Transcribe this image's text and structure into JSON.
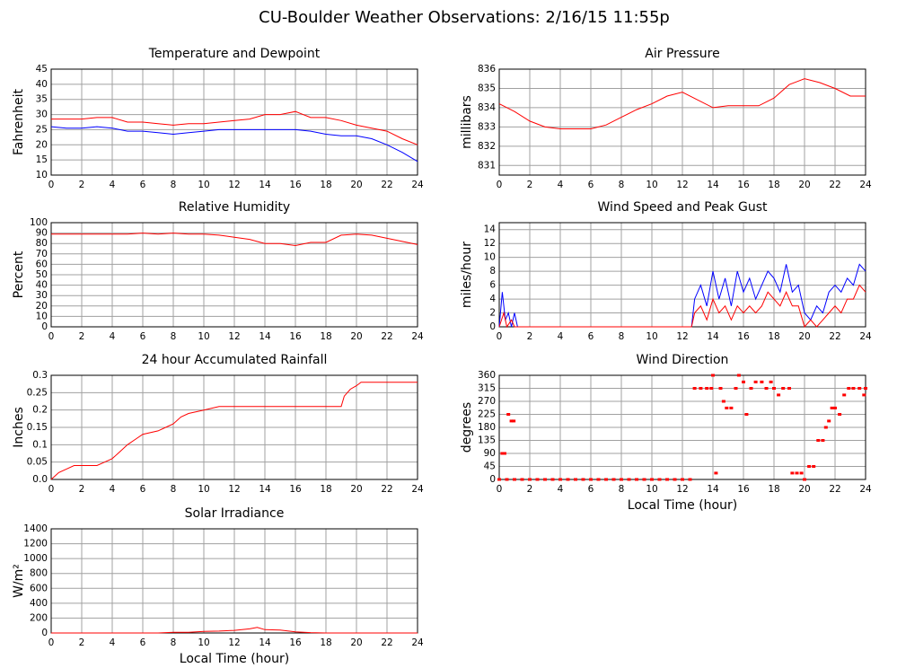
{
  "title": "CU-Boulder Weather Observations: 2/16/15 11:55p",
  "chart_data": [
    {
      "type": "line",
      "title": "Temperature and Dewpoint",
      "ylabel": "Fahrenheit",
      "x": [
        0,
        1,
        2,
        3,
        4,
        5,
        6,
        7,
        8,
        9,
        10,
        11,
        12,
        13,
        14,
        15,
        16,
        17,
        18,
        19,
        20,
        21,
        22,
        23,
        24
      ],
      "series": [
        {
          "color": "#ff0000",
          "values": [
            28.5,
            28.5,
            28.5,
            29,
            29,
            27.5,
            27.5,
            27,
            26.5,
            27,
            27,
            27.5,
            28,
            28.5,
            30,
            30,
            31,
            29,
            29,
            28,
            26.5,
            25.5,
            24.5,
            22,
            20
          ]
        },
        {
          "color": "#0000ff",
          "values": [
            26,
            25.5,
            25.5,
            26,
            25.5,
            24.5,
            24.5,
            24,
            23.5,
            24,
            24.5,
            25,
            25,
            25,
            25,
            25,
            25,
            24.5,
            23.5,
            23,
            23,
            22,
            20,
            17.5,
            14.5
          ]
        }
      ],
      "xlim": [
        0,
        24
      ],
      "xticks": [
        0,
        2,
        4,
        6,
        8,
        10,
        12,
        14,
        16,
        18,
        20,
        22,
        24
      ],
      "ylim": [
        10,
        45
      ],
      "yticks": [
        10,
        15,
        20,
        25,
        30,
        35,
        40,
        45
      ],
      "grid": true
    },
    {
      "type": "line",
      "title": "Air Pressure",
      "ylabel": "millibars",
      "x": [
        0,
        1,
        2,
        3,
        4,
        5,
        6,
        7,
        8,
        9,
        10,
        11,
        12,
        13,
        14,
        15,
        16,
        17,
        18,
        19,
        20,
        21,
        22,
        23,
        24
      ],
      "series": [
        {
          "color": "#ff0000",
          "values": [
            834.2,
            833.8,
            833.3,
            833.0,
            832.9,
            832.9,
            832.9,
            833.1,
            833.5,
            833.9,
            834.2,
            834.6,
            834.8,
            834.4,
            834.0,
            834.1,
            834.1,
            834.1,
            834.5,
            835.2,
            835.5,
            835.3,
            835.0,
            834.6,
            834.6
          ]
        }
      ],
      "xlim": [
        0,
        24
      ],
      "xticks": [
        0,
        2,
        4,
        6,
        8,
        10,
        12,
        14,
        16,
        18,
        20,
        22,
        24
      ],
      "ylim": [
        830.5,
        836
      ],
      "yticks": [
        831,
        832,
        833,
        834,
        835,
        836
      ],
      "grid": true
    },
    {
      "type": "line",
      "title": "Relative Humidity",
      "ylabel": "Percent",
      "x": [
        0,
        1,
        2,
        3,
        4,
        5,
        6,
        7,
        8,
        9,
        10,
        11,
        12,
        13,
        14,
        15,
        16,
        17,
        18,
        19,
        20,
        21,
        22,
        23,
        24
      ],
      "series": [
        {
          "color": "#ff0000",
          "values": [
            89,
            89,
            89,
            89,
            89,
            89,
            90,
            89,
            90,
            89,
            89,
            88,
            86,
            84,
            80,
            80,
            78,
            81,
            81,
            88,
            89,
            88,
            85,
            82,
            79
          ]
        }
      ],
      "xlim": [
        0,
        24
      ],
      "xticks": [
        0,
        2,
        4,
        6,
        8,
        10,
        12,
        14,
        16,
        18,
        20,
        22,
        24
      ],
      "ylim": [
        0,
        100
      ],
      "yticks": [
        0,
        10,
        20,
        30,
        40,
        50,
        60,
        70,
        80,
        90,
        100
      ],
      "grid": true
    },
    {
      "type": "line",
      "title": "Wind Speed and Peak Gust",
      "ylabel": "miles/hour",
      "series": [
        {
          "color": "#0000ff",
          "x": [
            0,
            0.2,
            0.4,
            0.6,
            0.8,
            1,
            1.2,
            12.6,
            12.8,
            13.2,
            13.6,
            14,
            14.4,
            14.8,
            15.2,
            15.6,
            16,
            16.4,
            16.8,
            17.2,
            17.6,
            18,
            18.4,
            18.8,
            19.2,
            19.6,
            20,
            20.4,
            20.8,
            21.2,
            21.6,
            22,
            22.4,
            22.8,
            23.2,
            23.6,
            24
          ],
          "values": [
            0,
            5,
            1,
            2,
            0,
            2,
            0,
            0,
            4,
            6,
            3,
            8,
            4,
            7,
            3,
            8,
            5,
            7,
            4,
            6,
            8,
            7,
            5,
            9,
            5,
            6,
            2,
            1,
            3,
            2,
            5,
            6,
            5,
            7,
            6,
            9,
            8
          ]
        },
        {
          "color": "#ff0000",
          "x": [
            0,
            0.3,
            0.5,
            0.8,
            1,
            12.6,
            12.8,
            13.2,
            13.6,
            14,
            14.4,
            14.8,
            15.2,
            15.6,
            16,
            16.4,
            16.8,
            17.2,
            17.6,
            18,
            18.4,
            18.8,
            19.2,
            19.6,
            20,
            20.4,
            20.8,
            21.2,
            21.6,
            22,
            22.4,
            22.8,
            23.2,
            23.6,
            24
          ],
          "values": [
            0,
            2,
            0,
            1,
            0,
            0,
            2,
            3,
            1,
            4,
            2,
            3,
            1,
            3,
            2,
            3,
            2,
            3,
            5,
            4,
            3,
            5,
            3,
            3,
            0,
            1,
            0,
            1,
            2,
            3,
            2,
            4,
            4,
            6,
            5
          ]
        }
      ],
      "xlim": [
        0,
        24
      ],
      "xticks": [
        0,
        2,
        4,
        6,
        8,
        10,
        12,
        14,
        16,
        18,
        20,
        22,
        24
      ],
      "ylim": [
        0,
        15
      ],
      "yticks": [
        0,
        2,
        4,
        6,
        8,
        10,
        12,
        14
      ],
      "grid": true
    },
    {
      "type": "line",
      "title": "24 hour Accumulated Rainfall",
      "ylabel": "Inches",
      "x": [
        0,
        0.5,
        1,
        1.5,
        3,
        3.5,
        4,
        4.5,
        5,
        5.5,
        6,
        7,
        7.5,
        8,
        8.5,
        9,
        10,
        11,
        19,
        19.2,
        19.6,
        20,
        20.3,
        24
      ],
      "series": [
        {
          "color": "#ff0000",
          "values": [
            0,
            0.02,
            0.03,
            0.04,
            0.04,
            0.05,
            0.06,
            0.08,
            0.1,
            0.115,
            0.13,
            0.14,
            0.15,
            0.16,
            0.18,
            0.19,
            0.2,
            0.21,
            0.21,
            0.24,
            0.26,
            0.27,
            0.28,
            0.28
          ]
        }
      ],
      "xlim": [
        0,
        24
      ],
      "xticks": [
        0,
        2,
        4,
        6,
        8,
        10,
        12,
        14,
        16,
        18,
        20,
        22,
        24
      ],
      "ylim": [
        0,
        0.3
      ],
      "yticks": [
        {
          "value": 0,
          "label": "0.0"
        },
        0.05,
        0.1,
        0.15,
        0.2,
        0.25,
        0.3
      ],
      "grid": true
    },
    {
      "type": "scatter",
      "title": "Wind Direction",
      "ylabel": "degrees",
      "xlabel": "Local Time (hour)",
      "x": [
        0,
        0.2,
        0.35,
        0.5,
        0.6,
        0.8,
        0.95,
        1,
        1.5,
        2,
        2.5,
        3,
        3.5,
        4,
        4.5,
        5,
        5.5,
        6,
        6.5,
        7,
        7.5,
        8,
        8.5,
        9,
        9.5,
        10,
        10.5,
        11,
        11.5,
        12,
        12.5,
        12.8,
        13.2,
        13.6,
        13.9,
        14,
        14.2,
        14.5,
        14.7,
        14.9,
        15.2,
        15.5,
        15.7,
        16,
        16.2,
        16.5,
        16.8,
        17.2,
        17.5,
        17.8,
        18,
        18.3,
        18.6,
        19,
        19.2,
        19.5,
        19.8,
        20,
        20.3,
        20.6,
        20.9,
        21.2,
        21.4,
        21.6,
        21.8,
        22,
        22.3,
        22.6,
        22.9,
        23.2,
        23.6,
        23.9,
        24
      ],
      "values": [
        0,
        90,
        90,
        0,
        225,
        202,
        202,
        0,
        0,
        0,
        0,
        0,
        0,
        0,
        0,
        0,
        0,
        0,
        0,
        0,
        0,
        0,
        0,
        0,
        0,
        0,
        0,
        0,
        0,
        0,
        0,
        315,
        315,
        315,
        315,
        360,
        22,
        315,
        270,
        247,
        247,
        315,
        360,
        337,
        225,
        315,
        337,
        337,
        315,
        337,
        315,
        292,
        315,
        315,
        22,
        22,
        22,
        0,
        45,
        45,
        135,
        135,
        180,
        202,
        247,
        247,
        225,
        292,
        315,
        315,
        315,
        292,
        315
      ],
      "color": "#ff0000",
      "xlim": [
        0,
        24
      ],
      "xticks": [
        0,
        2,
        4,
        6,
        8,
        10,
        12,
        14,
        16,
        18,
        20,
        22,
        24
      ],
      "ylim": [
        0,
        360
      ],
      "yticks": [
        0,
        45,
        90,
        135,
        180,
        225,
        270,
        315,
        360
      ],
      "grid": true
    },
    {
      "type": "line",
      "title": "Solar Irradiance",
      "ylabel": "W/m²",
      "xlabel": "Local Time (hour)",
      "x": [
        0,
        7,
        8,
        9,
        10,
        11,
        12,
        13,
        13.5,
        14,
        15,
        16,
        17,
        18,
        24
      ],
      "series": [
        {
          "color": "#ff0000",
          "values": [
            0,
            0,
            8,
            10,
            20,
            25,
            35,
            55,
            75,
            45,
            40,
            15,
            5,
            0,
            0
          ]
        }
      ],
      "xlim": [
        0,
        24
      ],
      "xticks": [
        0,
        2,
        4,
        6,
        8,
        10,
        12,
        14,
        16,
        18,
        20,
        22,
        24
      ],
      "ylim": [
        0,
        1400
      ],
      "yticks": [
        0,
        200,
        400,
        600,
        800,
        1000,
        1200,
        1400
      ],
      "grid": true
    }
  ]
}
